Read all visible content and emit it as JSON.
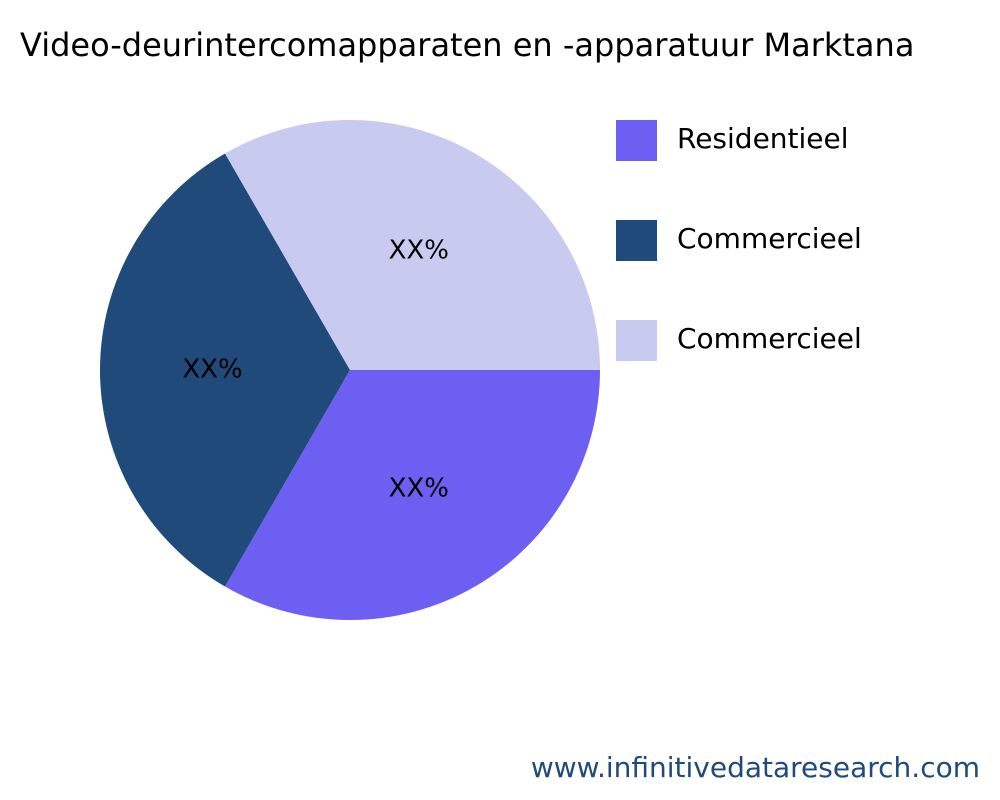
{
  "chart_data": {
    "type": "pie",
    "title": "Video-deurintercomapparaten en -apparatuur Marktana",
    "categories": [
      "Residentieel",
      "Commercieel",
      "Commercieel"
    ],
    "values": [
      33.3,
      33.3,
      33.3
    ],
    "value_labels": [
      "XX%",
      "XX%",
      "XX%"
    ],
    "colors": [
      "#6c5ff2",
      "#1f4a7a",
      "#c9caf0"
    ],
    "legend": "right",
    "watermark": "www.infinitivedataresearch.com"
  }
}
